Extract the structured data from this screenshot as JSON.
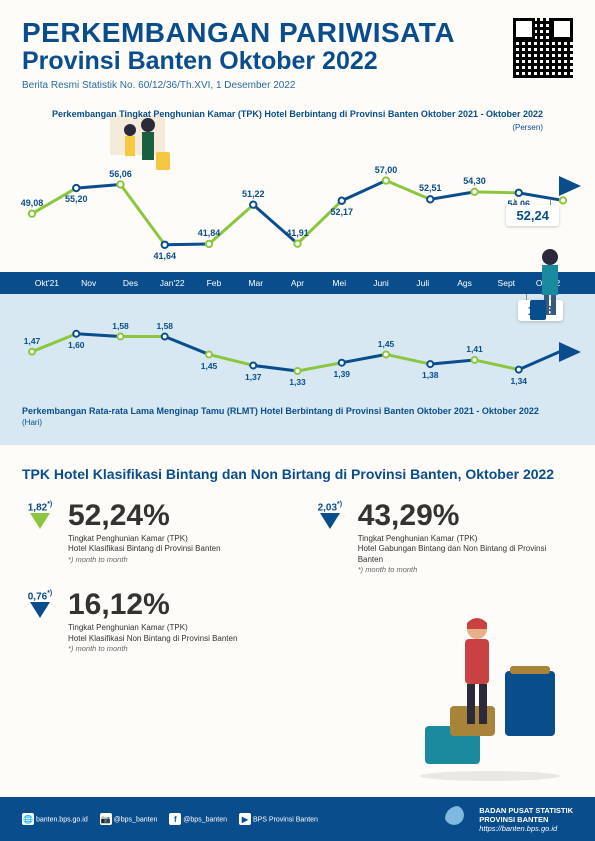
{
  "header": {
    "title": "PERKEMBANGAN PARIWISATA",
    "subtitle": "Provinsi Banten Oktober 2022",
    "ref": "Berita Resmi Statistik No. 60/12/36/Th.XVI, 1 Desember 2022"
  },
  "chart1": {
    "title": "Perkembangan Tingkat Penghunian Kamar (TPK) Hotel Berbintang di Provinsi Banten Oktober 2021 - Oktober 2022",
    "unit": "(Persen)",
    "months": [
      "Okt'21",
      "Nov",
      "Des",
      "Jan'22",
      "Feb",
      "Mar",
      "Apr",
      "Mei",
      "Juni",
      "Juli",
      "Ags",
      "Sept",
      "Okt'22"
    ],
    "values": [
      49.08,
      55.2,
      56.06,
      41.64,
      41.84,
      51.22,
      41.91,
      52.17,
      57.0,
      52.51,
      54.3,
      54.06,
      52.24
    ],
    "labels": [
      "49,08",
      "55,20",
      "56,06",
      "41,64",
      "41,84",
      "51,22",
      "41,91",
      "52,17",
      "57,00",
      "52,51",
      "54,30",
      "54,06",
      "52,24"
    ],
    "ylim": [
      38,
      60
    ],
    "colors": [
      "#8cc63f",
      "#0a4d8c"
    ],
    "line_width": 3,
    "marker_radius": 3.2,
    "label_fontsize": 9,
    "label_fontweight": 700,
    "label_color": "#0a4d8c",
    "callout_index": 12,
    "background": "#fdfcf8"
  },
  "month_bar": {
    "background": "#0a4d8c",
    "text_color": "#ffffff",
    "fontsize": 8.5
  },
  "chart2": {
    "title": "Perkembangan Rata-rata Lama Menginap Tamu (RLMT) Hotel Berbintang di Provinsi Banten Oktober 2021 - Oktober 2022",
    "unit": "(Hari)",
    "values": [
      1.47,
      1.6,
      1.58,
      1.58,
      1.45,
      1.37,
      1.33,
      1.39,
      1.45,
      1.38,
      1.41,
      1.34,
      1.48
    ],
    "labels": [
      "1,47",
      "1,60",
      "1,58",
      "1,58",
      "1,45",
      "1,37",
      "1,33",
      "1,39",
      "1,45",
      "1,38",
      "1,41",
      "1,34",
      "1,48"
    ],
    "ylim": [
      1.25,
      1.7
    ],
    "colors": [
      "#8cc63f",
      "#0a4d8c"
    ],
    "line_width": 3,
    "marker_radius": 3,
    "label_fontsize": 8.5,
    "label_color": "#0a4d8c",
    "callout_index": 12,
    "background": "#d7e8f2"
  },
  "stats": {
    "title": "TPK Hotel Klasifikasi Bintang dan Non Birtang di Provinsi Banten, Oktober 2022",
    "items": [
      {
        "indicator": "1,82",
        "sup": "*)",
        "arrow": "green",
        "value": "52,24%",
        "desc": "Tingkat Penghunian Kamar (TPK)\nHotel Klasifikasi Bintang di Provinsi Banten",
        "mtm": "*) month to month"
      },
      {
        "indicator": "2,03",
        "sup": "*)",
        "arrow": "blue",
        "value": "43,29%",
        "desc": "Tingkat Penghunian Kamar (TPK)\nHotel Gabungan Bintang dan Non Bintang di Provinsi Banten",
        "mtm": "*) month to month"
      },
      {
        "indicator": "0,76",
        "sup": "*)",
        "arrow": "blue",
        "value": "16,12%",
        "desc": "Tingkat Penghunian Kamar (TPK)\nHotel Klasifikasi Non Bintang di Provinsi Banten",
        "mtm": "*) month to month"
      }
    ]
  },
  "footer": {
    "social": [
      {
        "icon": "🌐",
        "text": "banten.bps.go.id"
      },
      {
        "icon": "📷",
        "text": "@bps_banten"
      },
      {
        "icon": "f",
        "text": "@bps_banten"
      },
      {
        "icon": "▶",
        "text": "BPS Provinsi Banten"
      }
    ],
    "org_line1": "BADAN PUSAT STATISTIK",
    "org_line2": "PROVINSI BANTEN",
    "org_url": "https://banten.bps.go.id"
  },
  "colors": {
    "primary": "#0a4d8c",
    "accent": "#8cc63f",
    "bg_light": "#d7e8f2",
    "bg_page": "#fdfcf8",
    "text_dark": "#333333"
  }
}
